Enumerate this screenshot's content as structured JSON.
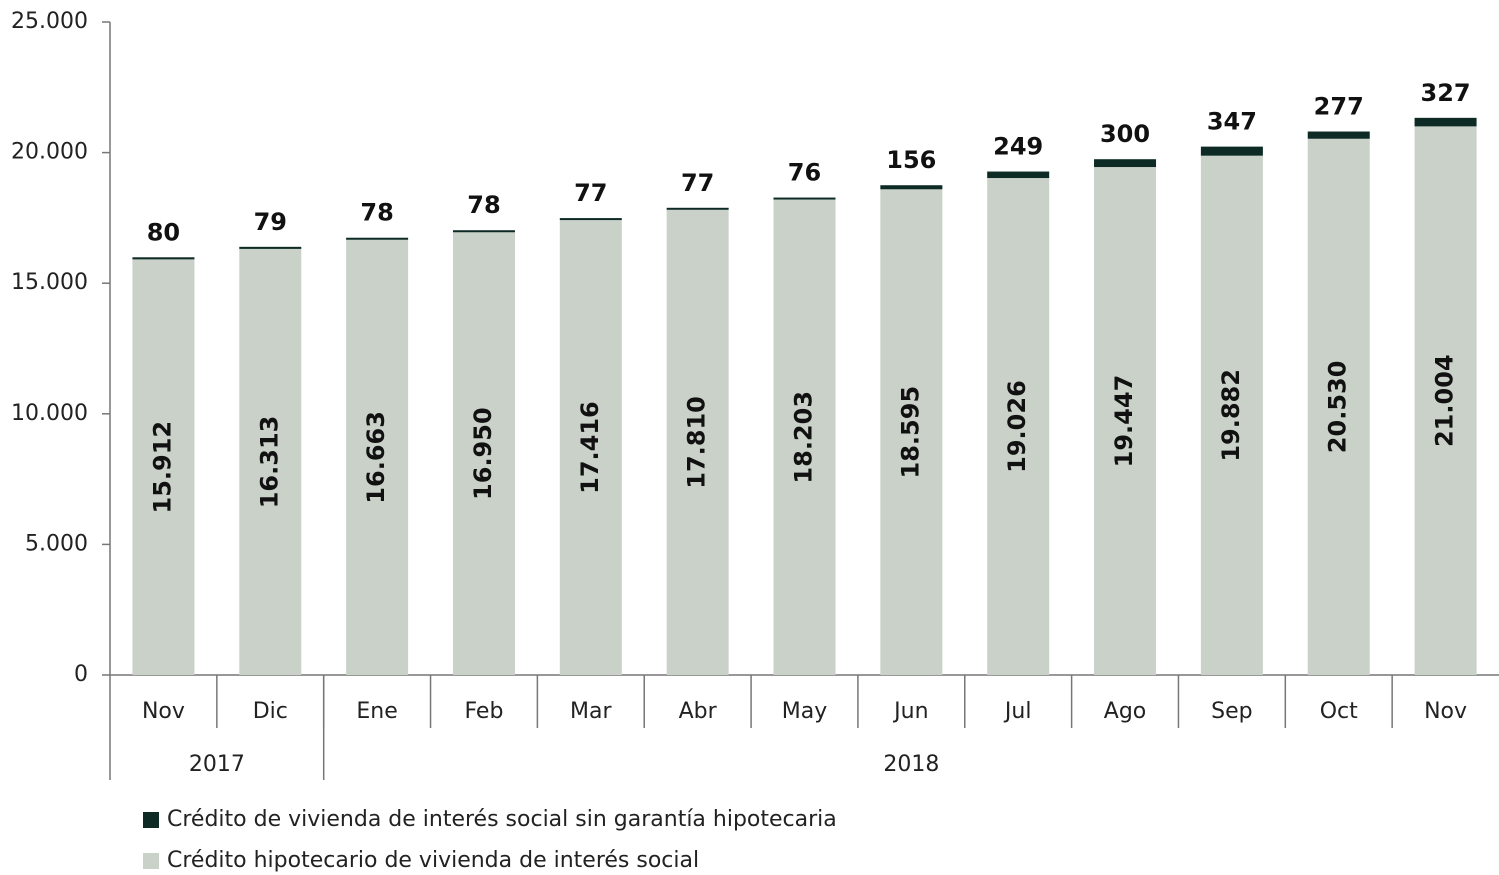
{
  "chart_data": {
    "type": "stacked_bar",
    "categories": [
      "Nov",
      "Dic",
      "Ene",
      "Feb",
      "Mar",
      "Abr",
      "May",
      "Jun",
      "Jul",
      "Ago",
      "Sep",
      "Oct",
      "Nov"
    ],
    "x_groups": [
      {
        "label": "2017",
        "count": 2
      },
      {
        "label": "2018",
        "count": 11
      }
    ],
    "series": [
      {
        "name": "Crédito hipotecario de vivienda de interés social",
        "color": "#c9d1c9",
        "values": [
          15912,
          16313,
          16663,
          16950,
          17416,
          17810,
          18203,
          18595,
          19026,
          19447,
          19882,
          20530,
          21004
        ],
        "value_labels": [
          "15.912",
          "16.313",
          "16.663",
          "16.950",
          "17.416",
          "17.810",
          "18.203",
          "18.595",
          "19.026",
          "19.447",
          "19.882",
          "20.530",
          "21.004"
        ]
      },
      {
        "name": "Crédito de vivienda de interés social sin garantía hipotecaria",
        "color": "#0d2a25",
        "values": [
          80,
          79,
          78,
          78,
          77,
          77,
          76,
          156,
          249,
          300,
          347,
          277,
          327
        ]
      }
    ],
    "ylim": [
      0,
      25000
    ],
    "yticks": [
      0,
      {
        "value": 5000,
        "label": "5.000"
      },
      {
        "value": 10000,
        "label": "10.000"
      },
      {
        "value": 15000,
        "label": "15.000"
      },
      {
        "value": 20000,
        "label": "20.000"
      },
      {
        "value": 25000,
        "label": "25.000"
      }
    ],
    "legend": "bottom-left"
  }
}
